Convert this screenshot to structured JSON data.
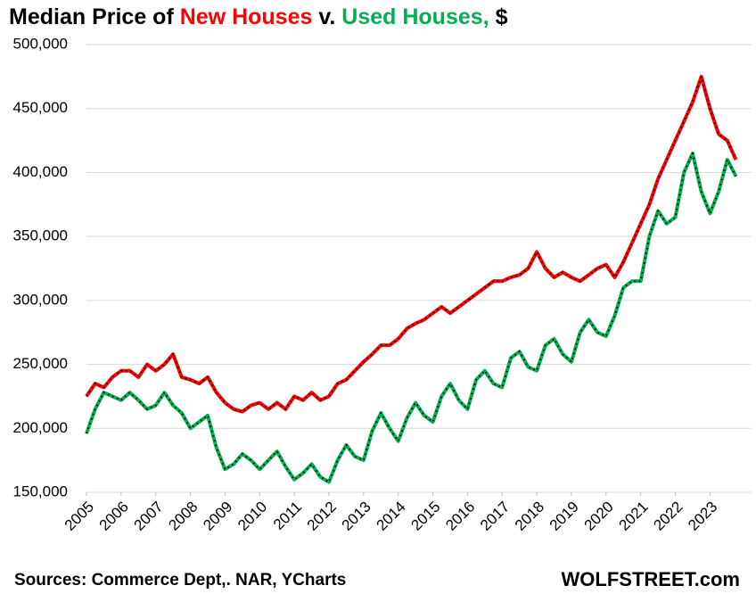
{
  "chart_data": {
    "type": "line",
    "title_parts": [
      {
        "text": "Median Price of ",
        "color": "#000000"
      },
      {
        "text": "New Houses",
        "color": "#ff0000"
      },
      {
        "text": " v. ",
        "color": "#000000"
      },
      {
        "text": "Used Houses,",
        "color": "#00b050"
      },
      {
        "text": " $",
        "color": "#000000"
      }
    ],
    "source": "Sources: Commerce Dept,. NAR, YCharts",
    "brand": "WOLFSTREET.com",
    "x": [
      2005,
      2005.25,
      2005.5,
      2005.75,
      2006,
      2006.25,
      2006.5,
      2006.75,
      2007,
      2007.25,
      2007.5,
      2007.75,
      2008,
      2008.25,
      2008.5,
      2008.75,
      2009,
      2009.25,
      2009.5,
      2009.75,
      2010,
      2010.25,
      2010.5,
      2010.75,
      2011,
      2011.25,
      2011.5,
      2011.75,
      2012,
      2012.25,
      2012.5,
      2012.75,
      2013,
      2013.25,
      2013.5,
      2013.75,
      2014,
      2014.25,
      2014.5,
      2014.75,
      2015,
      2015.25,
      2015.5,
      2015.75,
      2016,
      2016.25,
      2016.5,
      2016.75,
      2017,
      2017.25,
      2017.5,
      2017.75,
      2018,
      2018.25,
      2018.5,
      2018.75,
      2019,
      2019.25,
      2019.5,
      2019.75,
      2020,
      2020.25,
      2020.5,
      2020.75,
      2021,
      2021.25,
      2021.5,
      2021.75,
      2022,
      2022.25,
      2022.5,
      2022.75,
      2023,
      2023.25,
      2023.5,
      2023.75
    ],
    "series": [
      {
        "name": "New Houses",
        "color": "#ff0000",
        "values": [
          225000,
          235000,
          232000,
          240000,
          245000,
          245000,
          240000,
          250000,
          245000,
          250000,
          258000,
          240000,
          238000,
          235000,
          240000,
          228000,
          220000,
          215000,
          213000,
          218000,
          220000,
          215000,
          220000,
          215000,
          225000,
          222000,
          228000,
          222000,
          225000,
          235000,
          238000,
          245000,
          252000,
          258000,
          265000,
          265000,
          270000,
          278000,
          282000,
          285000,
          290000,
          295000,
          290000,
          295000,
          300000,
          305000,
          310000,
          315000,
          315000,
          318000,
          320000,
          325000,
          338000,
          325000,
          318000,
          322000,
          318000,
          315000,
          320000,
          325000,
          328000,
          318000,
          330000,
          345000,
          360000,
          375000,
          395000,
          410000,
          425000,
          440000,
          455000,
          475000,
          450000,
          430000,
          425000,
          410000
        ]
      },
      {
        "name": "Used Houses",
        "color": "#00b050",
        "values": [
          196000,
          215000,
          228000,
          225000,
          222000,
          228000,
          222000,
          215000,
          218000,
          228000,
          218000,
          212000,
          200000,
          205000,
          210000,
          185000,
          168000,
          172000,
          180000,
          175000,
          168000,
          175000,
          182000,
          170000,
          160000,
          165000,
          172000,
          162000,
          158000,
          175000,
          187000,
          178000,
          175000,
          198000,
          212000,
          200000,
          190000,
          208000,
          220000,
          210000,
          205000,
          225000,
          235000,
          222000,
          215000,
          238000,
          245000,
          235000,
          232000,
          255000,
          260000,
          248000,
          245000,
          265000,
          270000,
          258000,
          252000,
          275000,
          285000,
          275000,
          272000,
          288000,
          310000,
          315000,
          315000,
          350000,
          370000,
          360000,
          365000,
          400000,
          415000,
          385000,
          368000,
          385000,
          410000,
          397000
        ]
      }
    ],
    "xlim": [
      2005,
      2024.2
    ],
    "xticks": [
      2005,
      2006,
      2007,
      2008,
      2009,
      2010,
      2011,
      2012,
      2013,
      2014,
      2015,
      2016,
      2017,
      2018,
      2019,
      2020,
      2021,
      2022,
      2023
    ],
    "ylim": [
      150000,
      500000
    ],
    "yticks": [
      {
        "value": 150000,
        "label": "150,000"
      },
      {
        "value": 200000,
        "label": "200,000"
      },
      {
        "value": 250000,
        "label": "250,000"
      },
      {
        "value": 300000,
        "label": "300,000"
      },
      {
        "value": 350000,
        "label": "350,000"
      },
      {
        "value": 400000,
        "label": "400,000"
      },
      {
        "value": 450000,
        "label": "450,000"
      },
      {
        "value": 500000,
        "label": "500,000"
      }
    ],
    "grid": true
  }
}
